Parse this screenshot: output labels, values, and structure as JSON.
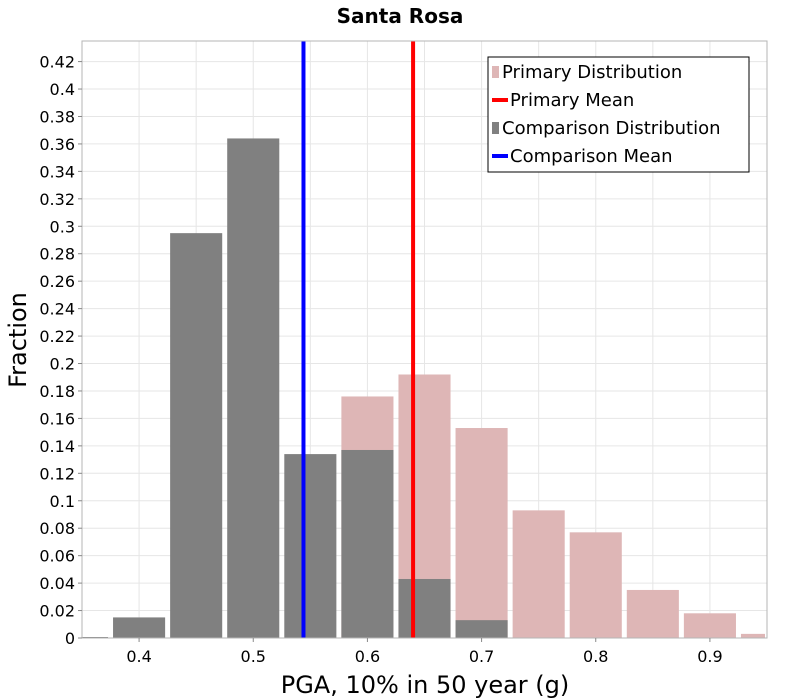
{
  "chart_data": {
    "type": "bar",
    "title": "Santa Rosa",
    "xlabel": "PGA, 10% in 50 year (g)",
    "ylabel": "Fraction",
    "xlim": [
      0.35,
      0.95
    ],
    "ylim": [
      0,
      0.435
    ],
    "bin_width": 0.05,
    "x_ticks": [
      0.4,
      0.5,
      0.6,
      0.7,
      0.8,
      0.9
    ],
    "x_tick_labels": [
      "0.4",
      "0.5",
      "0.6",
      "0.7",
      "0.8",
      "0.9"
    ],
    "y_ticks": [
      0,
      0.02,
      0.04,
      0.06,
      0.08,
      0.1,
      0.12,
      0.14,
      0.16,
      0.18,
      0.2,
      0.22,
      0.24,
      0.26,
      0.28,
      0.3,
      0.32,
      0.34,
      0.36,
      0.38,
      0.4,
      0.42
    ],
    "y_tick_labels": [
      "0",
      "0.02",
      "0.04",
      "0.06",
      "0.08",
      "0.1",
      "0.12",
      "0.14",
      "0.16",
      "0.18",
      "0.2",
      "0.22",
      "0.24",
      "0.26",
      "0.28",
      "0.3",
      "0.32",
      "0.34",
      "0.36",
      "0.38",
      "0.4",
      "0.42"
    ],
    "grid": true,
    "legend_position": "top-right",
    "series": [
      {
        "name": "Primary Distribution",
        "kind": "bar",
        "color": "#deb6b6",
        "x": [
          0.6,
          0.65,
          0.7,
          0.75,
          0.8,
          0.85,
          0.9
        ],
        "values": [
          0.176,
          0.192,
          0.153,
          0.093,
          0.077,
          0.035,
          0.018
        ]
      },
      {
        "name": "Comparison Distribution",
        "kind": "bar",
        "color": "#808080",
        "x": [
          0.4,
          0.45,
          0.5,
          0.55,
          0.6,
          0.65,
          0.7
        ],
        "values": [
          0.015,
          0.295,
          0.364,
          0.134,
          0.137,
          0.043,
          0.013
        ]
      }
    ],
    "extra_bars": [
      {
        "series": "Primary Distribution",
        "x": 0.95,
        "value": 0.003
      }
    ],
    "mean_lines": [
      {
        "name": "Primary Mean",
        "color": "#ff0000",
        "x": 0.64
      },
      {
        "name": "Comparison Mean",
        "color": "#0000ff",
        "x": 0.544
      }
    ],
    "legend": [
      {
        "label": "Primary Distribution",
        "kind": "bar",
        "color": "#deb6b6"
      },
      {
        "label": "Primary Mean",
        "kind": "line",
        "color": "#ff0000"
      },
      {
        "label": "Comparison Distribution",
        "kind": "bar",
        "color": "#808080"
      },
      {
        "label": "Comparison Mean",
        "kind": "line",
        "color": "#0000ff"
      }
    ]
  }
}
